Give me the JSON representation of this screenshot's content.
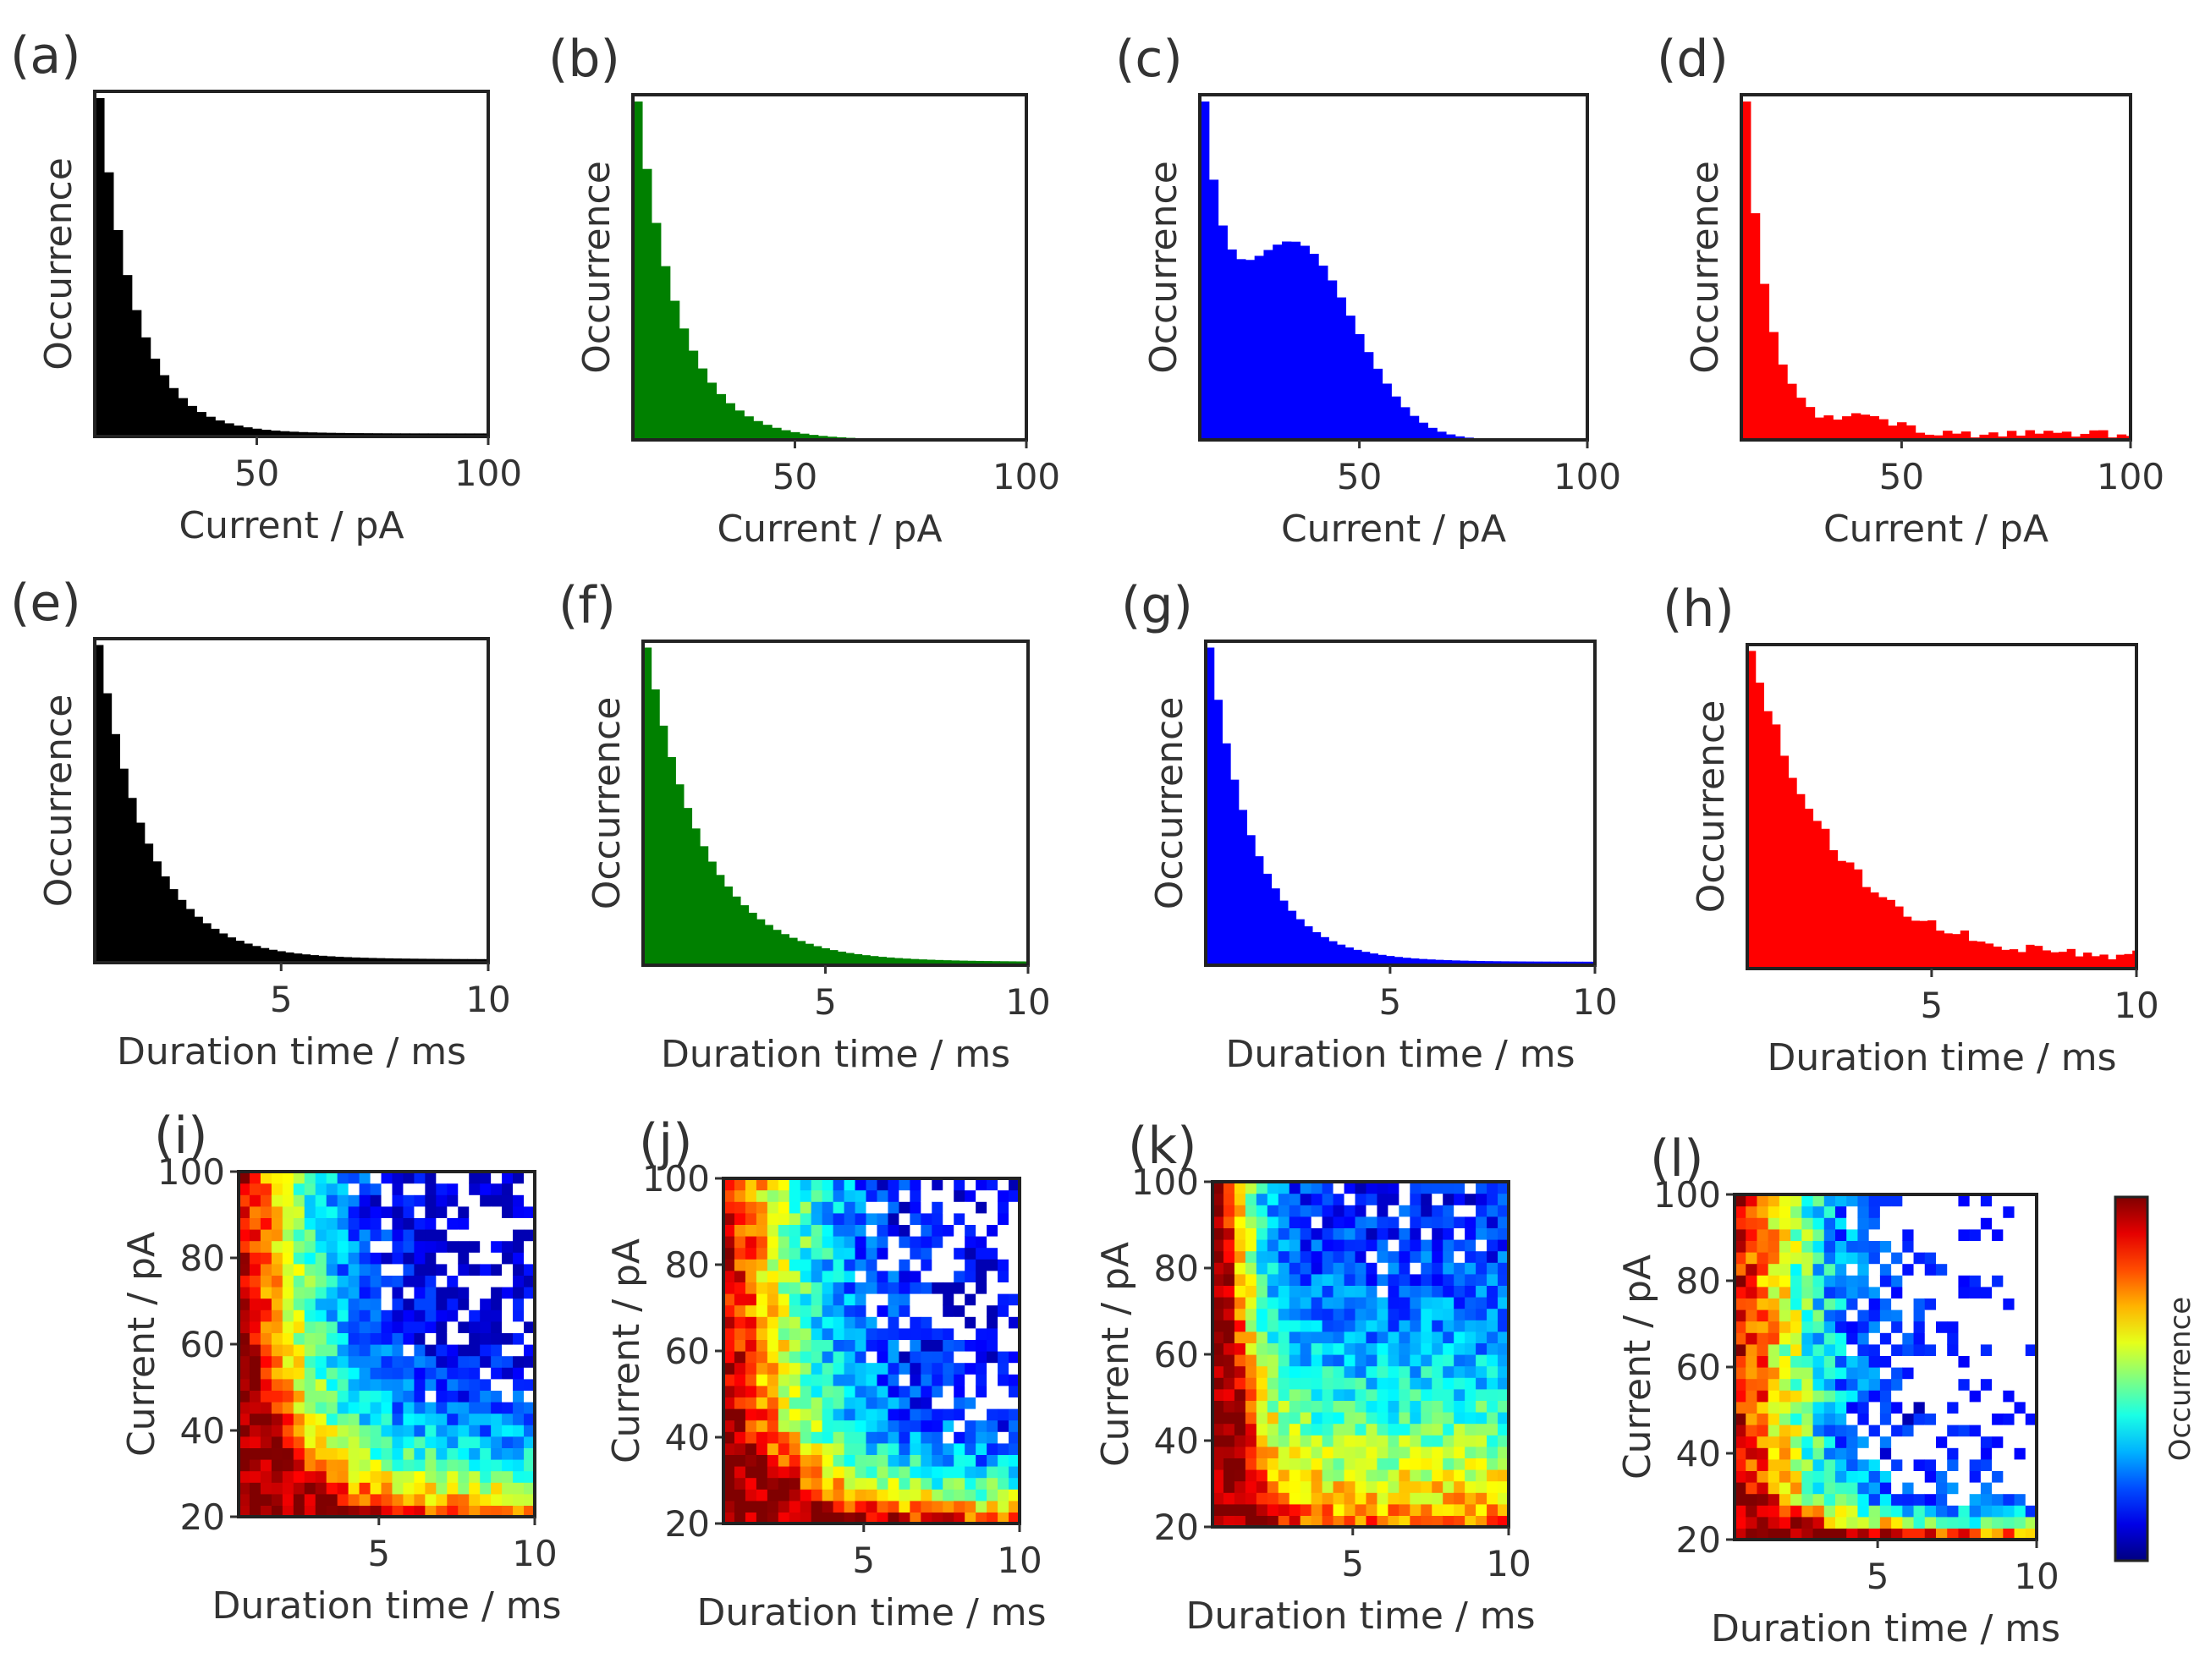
{
  "chart_data": [
    {
      "id": "a",
      "type": "bar",
      "panel_label": "(a)",
      "xlabel": "Current / pA",
      "ylabel": "Occurrence",
      "xlim": [
        15,
        100
      ],
      "xticks": [
        50,
        100
      ],
      "bin_width": 2,
      "color": "#000000",
      "shape": {
        "kind": "exp",
        "amp": 100,
        "scale": 8,
        "floor": 0.8,
        "noise": 0
      }
    },
    {
      "id": "b",
      "type": "bar",
      "panel_label": "(b)",
      "xlabel": "Current / pA",
      "ylabel": "Occurrence",
      "xlim": [
        15,
        100
      ],
      "xticks": [
        50,
        100
      ],
      "bin_width": 2,
      "color": "#008000",
      "shape": {
        "kind": "exp",
        "amp": 100,
        "scale": 9,
        "floor": 0,
        "noise": 0
      }
    },
    {
      "id": "c",
      "type": "bar",
      "panel_label": "(c)",
      "xlabel": "Current / pA",
      "ylabel": "Occurrence",
      "xlim": [
        15,
        100
      ],
      "xticks": [
        50,
        100
      ],
      "bin_width": 2,
      "color": "#0000ff",
      "shape": {
        "kind": "expbump",
        "amp": 50,
        "scale": 5,
        "bump_amp": 28,
        "bump_center": 36,
        "bump_width": 18,
        "floor": 0,
        "noise": 0
      }
    },
    {
      "id": "d",
      "type": "bar",
      "panel_label": "(d)",
      "xlabel": "Current / pA",
      "ylabel": "Occurrence",
      "xlim": [
        15,
        100
      ],
      "xticks": [
        50,
        100
      ],
      "bin_width": 2,
      "color": "#ff0000",
      "shape": {
        "kind": "expbump",
        "amp": 100,
        "scale": 5,
        "bump_amp": 4,
        "bump_center": 42,
        "bump_width": 10,
        "floor": 1.5,
        "noise": 1
      }
    },
    {
      "id": "e",
      "type": "bar",
      "panel_label": "(e)",
      "xlabel": "Duration time / ms",
      "ylabel": "Occurrence",
      "xlim": [
        0.5,
        10
      ],
      "xticks": [
        5,
        10
      ],
      "bin_width": 0.2,
      "color": "#000000",
      "shape": {
        "kind": "exp",
        "amp": 100,
        "scale": 1.2,
        "floor": 1,
        "noise": 0
      }
    },
    {
      "id": "f",
      "type": "bar",
      "panel_label": "(f)",
      "xlabel": "Duration time / ms",
      "ylabel": "Occurrence",
      "xlim": [
        0.5,
        10
      ],
      "xticks": [
        5,
        10
      ],
      "bin_width": 0.2,
      "color": "#008000",
      "shape": {
        "kind": "exp",
        "amp": 100,
        "scale": 1.4,
        "floor": 1,
        "noise": 0
      }
    },
    {
      "id": "g",
      "type": "bar",
      "panel_label": "(g)",
      "xlabel": "Duration time / ms",
      "ylabel": "Occurrence",
      "xlim": [
        0.5,
        10
      ],
      "xticks": [
        5,
        10
      ],
      "bin_width": 0.2,
      "color": "#0000ff",
      "shape": {
        "kind": "exp",
        "amp": 100,
        "scale": 1.1,
        "floor": 1,
        "noise": 0
      }
    },
    {
      "id": "h",
      "type": "bar",
      "panel_label": "(h)",
      "xlabel": "Duration time / ms",
      "ylabel": "Occurrence",
      "xlim": [
        0.5,
        10
      ],
      "xticks": [
        5,
        10
      ],
      "bin_width": 0.2,
      "color": "#ff0000",
      "shape": {
        "kind": "exp",
        "amp": 100,
        "scale": 2,
        "floor": 3,
        "noise": 2
      }
    },
    {
      "id": "i",
      "type": "heatmap",
      "panel_label": "(i)",
      "xlabel": "Duration time / ms",
      "ylabel": "Current / pA",
      "xlim": [
        0.5,
        10
      ],
      "ylim": [
        20,
        100
      ],
      "xticks": [
        5,
        10
      ],
      "yticks": [
        20,
        40,
        60,
        80,
        100
      ],
      "nx": 27,
      "ny": 30,
      "params": {
        "sx": 0.28,
        "sy": 0.22,
        "px": 1.3,
        "noise": 0.22,
        "empty_mix": 0.35,
        "seed": 11
      }
    },
    {
      "id": "j",
      "type": "heatmap",
      "panel_label": "(j)",
      "xlabel": "Duration time / ms",
      "ylabel": "Current / pA",
      "xlim": [
        0.5,
        10
      ],
      "ylim": [
        20,
        100
      ],
      "xticks": [
        5,
        10
      ],
      "yticks": [
        20,
        40,
        60,
        80,
        100
      ],
      "nx": 27,
      "ny": 30,
      "params": {
        "sx": 0.35,
        "sy": 0.15,
        "px": 1.2,
        "noise": 0.25,
        "empty_mix": 0.55,
        "seed": 23
      }
    },
    {
      "id": "k",
      "type": "heatmap",
      "panel_label": "(k)",
      "xlabel": "Duration time / ms",
      "ylabel": "Current / pA",
      "xlim": [
        0.5,
        10
      ],
      "ylim": [
        20,
        100
      ],
      "xticks": [
        5,
        10
      ],
      "yticks": [
        20,
        40,
        60,
        80,
        100
      ],
      "nx": 27,
      "ny": 30,
      "params": {
        "sx": 0.12,
        "sy": 0.55,
        "px": 1.3,
        "noise": 0.22,
        "empty_mix": 0.3,
        "seed": 37
      }
    },
    {
      "id": "l",
      "type": "heatmap",
      "panel_label": "(l)",
      "xlabel": "Duration time / ms",
      "ylabel": "Current / pA",
      "xlim": [
        0.5,
        10
      ],
      "ylim": [
        20,
        100
      ],
      "xticks": [
        5,
        10
      ],
      "yticks": [
        20,
        40,
        60,
        80,
        100
      ],
      "nx": 27,
      "ny": 30,
      "params": {
        "sx": 0.3,
        "sy": 0.07,
        "px": 1.3,
        "noise": 0.3,
        "empty_mix": 0.85,
        "seed": 53
      }
    }
  ],
  "colorbar": {
    "label": "Occurrence",
    "colormap": "jet"
  }
}
